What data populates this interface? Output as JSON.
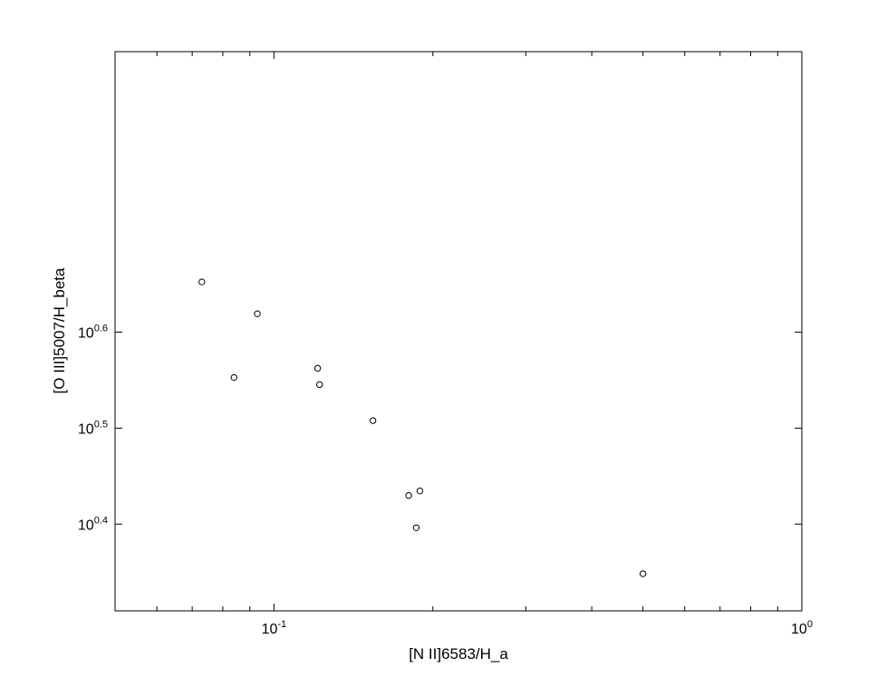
{
  "chart_data": {
    "type": "scatter",
    "xlabel": "[N II]6583/H_a",
    "ylabel": "[O III]5007/H_beta",
    "x_scale": "log",
    "y_scale": "log",
    "xlim": [
      0.05,
      1.0
    ],
    "ylim": [
      2.04,
      7.8
    ],
    "x_major_ticks": [
      {
        "value": 0.1,
        "base": "10",
        "exp": "-1"
      },
      {
        "value": 1.0,
        "base": "10",
        "exp": "0"
      }
    ],
    "y_major_ticks": [
      {
        "value": 2.512,
        "base": "10",
        "exp": "0.4"
      },
      {
        "value": 3.162,
        "base": "10",
        "exp": "0.5"
      },
      {
        "value": 3.981,
        "base": "10",
        "exp": "0.6"
      }
    ],
    "grid": false,
    "marker": "open-circle",
    "points": [
      {
        "x": 0.073,
        "y": 4.49
      },
      {
        "x": 0.093,
        "y": 4.16
      },
      {
        "x": 0.084,
        "y": 3.57
      },
      {
        "x": 0.121,
        "y": 3.65
      },
      {
        "x": 0.122,
        "y": 3.51
      },
      {
        "x": 0.154,
        "y": 3.22
      },
      {
        "x": 0.18,
        "y": 2.69
      },
      {
        "x": 0.189,
        "y": 2.72
      },
      {
        "x": 0.186,
        "y": 2.49
      },
      {
        "x": 0.5,
        "y": 2.23
      }
    ]
  }
}
